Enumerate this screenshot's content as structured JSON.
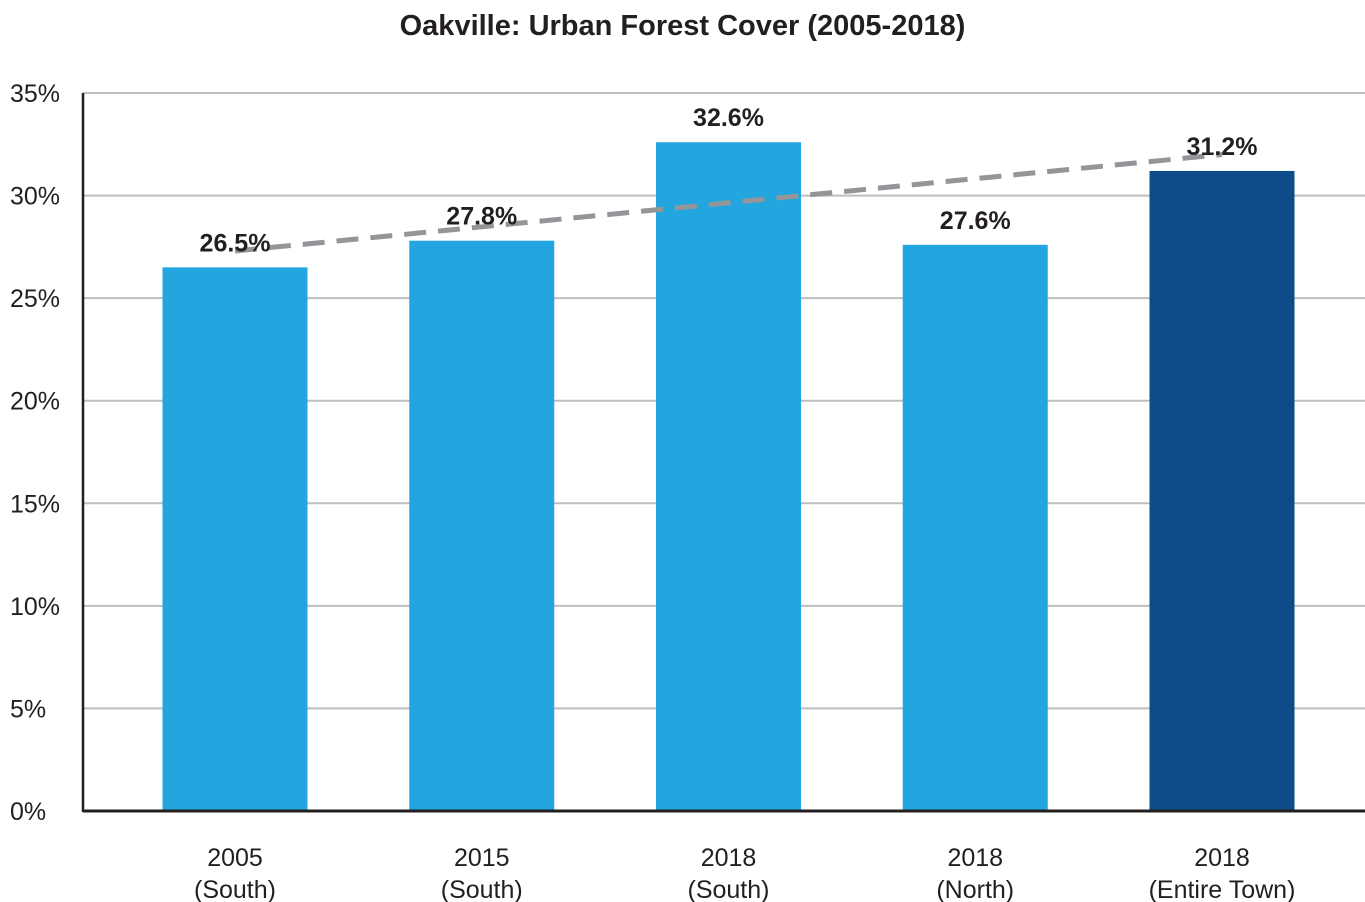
{
  "chart_data": {
    "type": "bar",
    "title": "Oakville: Urban Forest Cover (2005-2018)",
    "xlabel": "",
    "ylabel": "",
    "ylim": [
      0,
      35
    ],
    "yticks": [
      0,
      5,
      10,
      15,
      20,
      25,
      30,
      35
    ],
    "ytick_labels": [
      "0%",
      "5%",
      "10%",
      "15%",
      "20%",
      "25%",
      "30%",
      "35%"
    ],
    "categories": [
      [
        "2005",
        "(South)"
      ],
      [
        "2015",
        "(South)"
      ],
      [
        "2018",
        "(South)"
      ],
      [
        "2018",
        "(North)"
      ],
      [
        "2018",
        "(Entire Town)"
      ]
    ],
    "values": [
      26.5,
      27.8,
      32.6,
      27.6,
      31.2
    ],
    "value_labels": [
      "26.5%",
      "27.8%",
      "32.6%",
      "27.6%",
      "31.2%"
    ],
    "bar_colors": [
      "#23a6df",
      "#23a6df",
      "#23a6df",
      "#23a6df",
      "#0c4c89"
    ],
    "trendline": {
      "style": "dashed",
      "color": "#939598",
      "start": {
        "category_index": 0,
        "value": 27.3
      },
      "end": {
        "category_index": 4,
        "value": 32.0
      }
    },
    "grid": true,
    "grid_color": "#bcbec0",
    "legend": "none"
  }
}
